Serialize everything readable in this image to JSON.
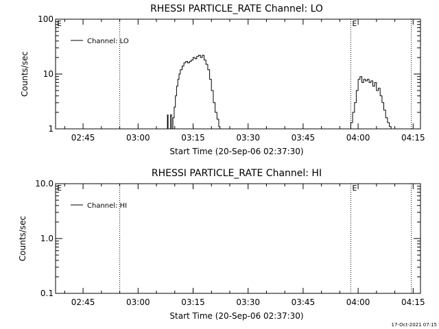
{
  "chart_data": [
    {
      "type": "line",
      "title": "RHESSI PARTICLE_RATE Channel: LO",
      "xlabel": "Start Time (20-Sep-06 02:37:30)",
      "ylabel": "Counts/sec",
      "yscale": "log",
      "ylim": [
        1,
        100
      ],
      "xlim": [
        "02:37:30",
        "04:17:00"
      ],
      "xticks": [
        "02:45",
        "03:00",
        "03:15",
        "03:30",
        "03:45",
        "04:00",
        "04:15"
      ],
      "yticks": [
        "1",
        "10",
        "100"
      ],
      "legend": "top-left",
      "grid": false,
      "series": [
        {
          "name": "Channel: LO",
          "x": [
            "03:07:30",
            "03:08:00",
            "03:08:10",
            "03:08:30",
            "03:08:50",
            "03:09:10",
            "03:09:30",
            "03:09:50",
            "03:10:10",
            "03:10:30",
            "03:10:50",
            "03:11:10",
            "03:11:30",
            "03:12:00",
            "03:12:30",
            "03:13:00",
            "03:13:30",
            "03:14:00",
            "03:14:30",
            "03:15:00",
            "03:15:30",
            "03:16:00",
            "03:16:30",
            "03:17:00",
            "03:17:30",
            "03:18:00",
            "03:18:30",
            "03:19:00",
            "03:19:30",
            "03:20:00",
            "03:20:30",
            "03:21:00",
            "03:21:30",
            "03:22:00",
            "03:22:20"
          ],
          "y": [
            1,
            1.8,
            1,
            1,
            1.8,
            1,
            1.6,
            2.5,
            4,
            6,
            8,
            10,
            12,
            14,
            16,
            17,
            16,
            17,
            18,
            20,
            19,
            21,
            22,
            20,
            22,
            18,
            15,
            12,
            8,
            5,
            3,
            2,
            1.5,
            1.1,
            1
          ],
          "x2": [
            "03:57:30",
            "03:58:00",
            "03:58:30",
            "03:59:00",
            "03:59:30",
            "04:00:00",
            "04:00:30",
            "04:01:00",
            "04:01:30",
            "04:02:00",
            "04:02:30",
            "04:03:00",
            "04:03:30",
            "04:04:00",
            "04:04:30",
            "04:05:00",
            "04:05:30",
            "04:06:00",
            "04:06:30",
            "04:07:00",
            "04:07:30",
            "04:08:00",
            "04:08:30",
            "04:09:00"
          ],
          "y2": [
            1,
            1.3,
            2,
            3,
            5,
            8,
            9,
            7,
            8,
            7.5,
            8,
            7,
            7.5,
            6,
            7,
            5,
            5.5,
            4,
            3,
            2.2,
            1.6,
            1.3,
            1.1,
            1
          ]
        }
      ],
      "annotations": [
        {
          "label": "E",
          "x": "02:37:30"
        },
        {
          "label": "E",
          "x": "03:58:00"
        }
      ],
      "vlines": [
        "02:55:00",
        "03:58:00",
        "04:14:30"
      ]
    },
    {
      "type": "line",
      "title": "RHESSI PARTICLE_RATE Channel: HI",
      "xlabel": "Start Time (20-Sep-06 02:37:30)",
      "ylabel": "Counts/sec",
      "yscale": "log",
      "ylim": [
        0.1,
        10
      ],
      "xlim": [
        "02:37:30",
        "04:17:00"
      ],
      "xticks": [
        "02:45",
        "03:00",
        "03:15",
        "03:30",
        "03:45",
        "04:00",
        "04:15"
      ],
      "yticks": [
        "0.1",
        "1.0",
        "10.0"
      ],
      "legend": "top-left",
      "grid": false,
      "series": [
        {
          "name": "Channel: HI",
          "x": [],
          "y": []
        }
      ],
      "annotations": [
        {
          "label": "E",
          "x": "02:37:30"
        },
        {
          "label": "E",
          "x": "03:58:00"
        }
      ],
      "vlines": [
        "02:55:00",
        "03:58:00",
        "04:14:30"
      ]
    }
  ],
  "footer": "17-Oct-2021 07:15"
}
